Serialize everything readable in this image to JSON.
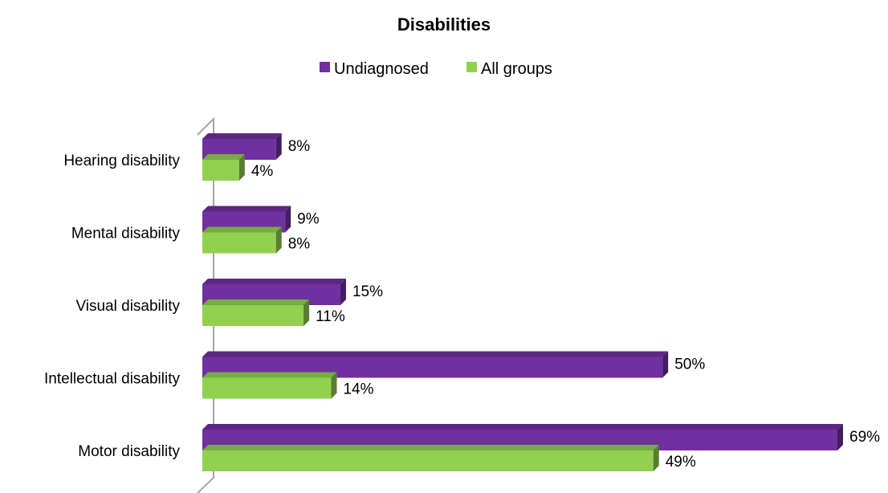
{
  "chart_data": {
    "type": "bar",
    "orientation": "horizontal",
    "title": "Disabilities",
    "categories": [
      "Hearing disability",
      "Mental disability",
      "Visual disability",
      "Intellectual disability",
      "Motor disability"
    ],
    "series": [
      {
        "name": "Undiagnosed",
        "values": [
          8,
          9,
          15,
          50,
          69
        ],
        "labels": [
          "8%",
          "9%",
          "15%",
          "50%",
          "69%"
        ],
        "color": "#7030a0"
      },
      {
        "name": "All groups",
        "values": [
          4,
          8,
          11,
          14,
          49
        ],
        "labels": [
          "4%",
          "8%",
          "11%",
          "14%",
          "49%"
        ],
        "color": "#92d050"
      }
    ],
    "xlim": [
      0,
      69
    ],
    "unit": "%",
    "legend_position": "top",
    "grid": false,
    "style": "3d"
  }
}
